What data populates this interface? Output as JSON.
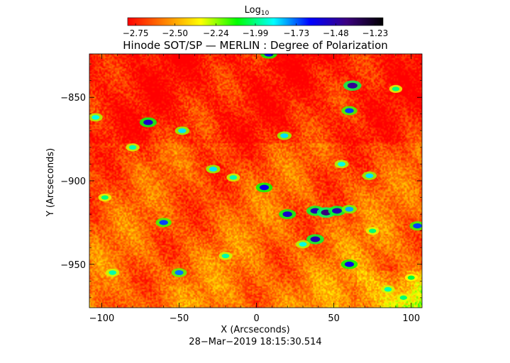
{
  "colorbar": {
    "label_main": "Log",
    "label_sub": "10",
    "ticks": [
      -2.75,
      -2.5,
      -2.24,
      -1.99,
      -1.73,
      -1.48,
      -1.23
    ],
    "tick_labels": [
      "−2.75",
      "−2.50",
      "−2.24",
      "−1.99",
      "−1.73",
      "−1.48",
      "−1.23"
    ],
    "range": [
      -2.8,
      -1.18
    ]
  },
  "chart_data": {
    "type": "heatmap",
    "title": "Hinode SOT/SP — MERLIN : Degree of Polarization",
    "xlabel": "X (Arcseconds)",
    "ylabel": "Y (Arcseconds)",
    "xlim": [
      -108,
      107
    ],
    "ylim": [
      -976,
      -824
    ],
    "x_ticks": [
      -100,
      -50,
      0,
      50,
      100
    ],
    "x_tick_labels": [
      "−100",
      "−50",
      "0",
      "50",
      "100"
    ],
    "y_ticks": [
      -850,
      -900,
      -950
    ],
    "y_tick_labels": [
      "−850",
      "−900",
      "−950"
    ],
    "value_range": [
      -2.8,
      -1.18
    ],
    "colormap_stops": [
      "#ff0000",
      "#ff8000",
      "#ffff00",
      "#00ff00",
      "#00ffff",
      "#0000ff",
      "#3c0080",
      "#000000"
    ],
    "background_level": -2.62,
    "features": [
      {
        "x": 62,
        "y": -843,
        "value": -1.45
      },
      {
        "x": -70,
        "y": -865,
        "value": -1.55
      },
      {
        "x": -48,
        "y": -870,
        "value": -1.85
      },
      {
        "x": 60,
        "y": -858,
        "value": -1.7
      },
      {
        "x": -28,
        "y": -893,
        "value": -1.85
      },
      {
        "x": -15,
        "y": -898,
        "value": -1.95
      },
      {
        "x": 5,
        "y": -904,
        "value": -1.6
      },
      {
        "x": 20,
        "y": -920,
        "value": -1.55
      },
      {
        "x": 38,
        "y": -918,
        "value": -1.5
      },
      {
        "x": 45,
        "y": -919,
        "value": -1.4
      },
      {
        "x": 52,
        "y": -918,
        "value": -1.5
      },
      {
        "x": 60,
        "y": -917,
        "value": -1.8
      },
      {
        "x": -60,
        "y": -925,
        "value": -1.7
      },
      {
        "x": 38,
        "y": -935,
        "value": -1.5
      },
      {
        "x": 30,
        "y": -938,
        "value": -1.9
      },
      {
        "x": 60,
        "y": -950,
        "value": -1.6
      },
      {
        "x": 73,
        "y": -897,
        "value": -1.85
      },
      {
        "x": 104,
        "y": -927,
        "value": -1.7
      },
      {
        "x": -93,
        "y": -955,
        "value": -1.95
      },
      {
        "x": -50,
        "y": -955,
        "value": -1.75
      },
      {
        "x": -104,
        "y": -862,
        "value": -1.9
      },
      {
        "x": 85,
        "y": -965,
        "value": -1.95
      },
      {
        "x": 95,
        "y": -970,
        "value": -2.0
      },
      {
        "x": 100,
        "y": -958,
        "value": -2.05
      },
      {
        "x": 18,
        "y": -873,
        "value": -1.85
      },
      {
        "x": 55,
        "y": -890,
        "value": -1.9
      },
      {
        "x": 90,
        "y": -845,
        "value": -2.0
      },
      {
        "x": -98,
        "y": -910,
        "value": -2.0
      },
      {
        "x": -80,
        "y": -880,
        "value": -1.95
      },
      {
        "x": 8,
        "y": -824,
        "value": -1.6
      },
      {
        "x": -20,
        "y": -945,
        "value": -1.95
      },
      {
        "x": 75,
        "y": -930,
        "value": -2.0
      }
    ]
  },
  "footer": {
    "timestamp": "28−Mar−2019  18:15:30.514"
  }
}
